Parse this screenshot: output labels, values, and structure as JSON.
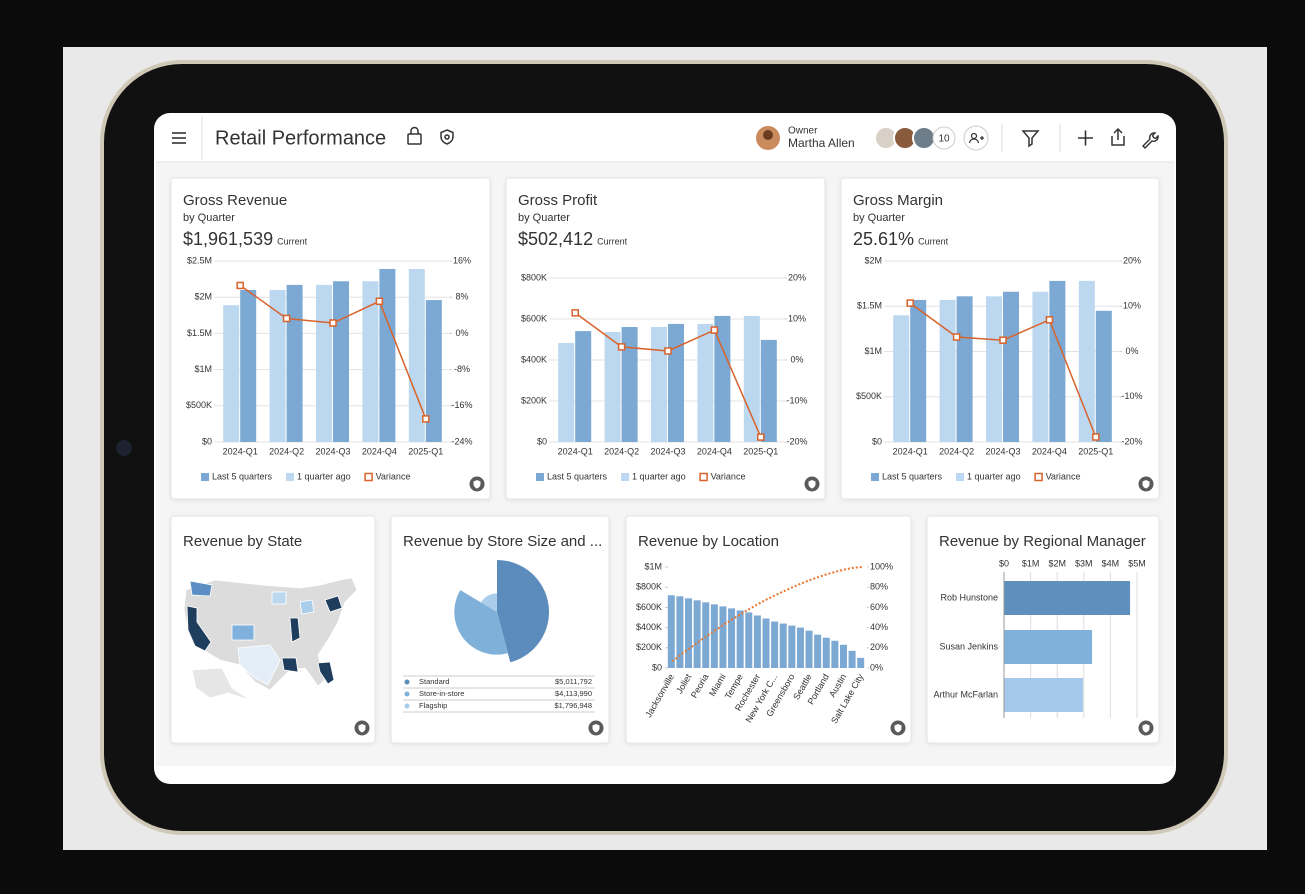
{
  "header": {
    "title": "Retail Performance",
    "owner_label": "Owner",
    "owner_name": "Martha Allen",
    "member_count": 10
  },
  "chart_data": [
    {
      "type": "combo",
      "title": "Gross Revenue",
      "subtitle": "by Quarter",
      "kpi": "$1,961,539",
      "kpi_caption": "Current",
      "categories": [
        "2024-Q1",
        "2024-Q2",
        "2024-Q3",
        "2024-Q4",
        "2025-Q1"
      ],
      "series": [
        {
          "name": "Last 5 quarters",
          "color": "#7ba9d3",
          "values": [
            2100000,
            2170000,
            2220000,
            2390000,
            1960000
          ]
        },
        {
          "name": "1 quarter ago",
          "color": "#bcd8f0",
          "values": [
            1890000,
            2100000,
            2170000,
            2220000,
            2390000
          ]
        },
        {
          "name": "Variance",
          "color": "#d9622b",
          "axis": "y2",
          "values": [
            10.6,
            3.3,
            2.3,
            7.1,
            -18.9
          ]
        }
      ],
      "ylim": [
        0,
        2500000
      ],
      "yticks": [
        {
          "value": 0,
          "label": "$0"
        },
        {
          "value": 500000,
          "label": "$500K"
        },
        {
          "value": 1000000,
          "label": "$1M"
        },
        {
          "value": 1500000,
          "label": "$1.5M"
        },
        {
          "value": 2000000,
          "label": "$2M"
        },
        {
          "value": 2500000,
          "label": "$2.5M"
        }
      ],
      "y2lim": [
        -24,
        16
      ],
      "y2ticks": [
        {
          "value": -24,
          "label": "-24%"
        },
        {
          "value": -16,
          "label": "-16%"
        },
        {
          "value": -8,
          "label": "-8%"
        },
        {
          "value": 0,
          "label": "0%"
        },
        {
          "value": 8,
          "label": "8%"
        },
        {
          "value": 16,
          "label": "16%"
        }
      ],
      "grid": true
    },
    {
      "type": "combo",
      "title": "Gross Profit",
      "subtitle": "by Quarter",
      "kpi": "$502,412",
      "kpi_caption": "Current",
      "categories": [
        "2024-Q1",
        "2024-Q2",
        "2024-Q3",
        "2024-Q4",
        "2025-Q1"
      ],
      "series": [
        {
          "name": "Last 5 quarters",
          "color": "#7ba9d3",
          "values": [
            541000,
            561000,
            576000,
            615000,
            498000
          ]
        },
        {
          "name": "1 quarter ago",
          "color": "#bcd8f0",
          "values": [
            483000,
            537000,
            561000,
            576000,
            615000
          ]
        },
        {
          "name": "Variance",
          "color": "#d9622b",
          "axis": "y2",
          "values": [
            11.5,
            3.2,
            2.2,
            7.3,
            -18.8
          ]
        }
      ],
      "ylim": [
        0,
        800000
      ],
      "yticks": [
        {
          "value": 0,
          "label": "$0"
        },
        {
          "value": 200000,
          "label": "$200K"
        },
        {
          "value": 400000,
          "label": "$400K"
        },
        {
          "value": 600000,
          "label": "$600K"
        },
        {
          "value": 800000,
          "label": "$800K"
        }
      ],
      "y2lim": [
        -20,
        20
      ],
      "y2ticks": [
        {
          "value": -20,
          "label": "-20%"
        },
        {
          "value": -10,
          "label": "-10%"
        },
        {
          "value": 0,
          "label": "0%"
        },
        {
          "value": 10,
          "label": "10%"
        },
        {
          "value": 20,
          "label": "20%"
        }
      ],
      "grid": true
    },
    {
      "type": "combo",
      "title": "Gross Margin",
      "subtitle": "by Quarter",
      "kpi": "25.61%",
      "kpi_caption": "Current",
      "categories": [
        "2024-Q1",
        "2024-Q2",
        "2024-Q3",
        "2024-Q4",
        "2025-Q1"
      ],
      "series": [
        {
          "name": "Last 5 quarters",
          "color": "#7ba9d3",
          "values": [
            1570000,
            1610000,
            1660000,
            1780000,
            1450000
          ]
        },
        {
          "name": "1 quarter ago",
          "color": "#bcd8f0",
          "values": [
            1400000,
            1570000,
            1610000,
            1660000,
            1780000
          ]
        },
        {
          "name": "Variance",
          "color": "#d9622b",
          "axis": "y2",
          "values": [
            10.7,
            3.2,
            2.5,
            7.0,
            -18.9
          ]
        }
      ],
      "ylim": [
        0,
        2000000
      ],
      "yticks": [
        {
          "value": 0,
          "label": "$0"
        },
        {
          "value": 500000,
          "label": "$500K"
        },
        {
          "value": 1000000,
          "label": "$1M"
        },
        {
          "value": 1500000,
          "label": "$1.5M"
        },
        {
          "value": 2000000,
          "label": "$2M"
        }
      ],
      "y2lim": [
        -20,
        20
      ],
      "y2ticks": [
        {
          "value": -20,
          "label": "-20%"
        },
        {
          "value": -10,
          "label": "-10%"
        },
        {
          "value": 0,
          "label": "0%"
        },
        {
          "value": 10,
          "label": "10%"
        },
        {
          "value": 20,
          "label": "20%"
        }
      ],
      "grid": true
    },
    {
      "type": "map",
      "title": "Revenue by State"
    },
    {
      "type": "pie",
      "title": "Revenue by Store Size and ...",
      "categories": [
        "Standard",
        "Store-in-store",
        "Flagship"
      ],
      "values": [
        5011792,
        4113990,
        1796948
      ],
      "value_labels": [
        "$5,011,792",
        "$4,113,990",
        "$1,796,948"
      ],
      "colors": [
        "#5b8cbb",
        "#7fb0da",
        "#a9cdea"
      ]
    },
    {
      "type": "combo",
      "title": "Revenue by Location",
      "categories": [
        "Jacksonville",
        null,
        "Joliet",
        null,
        "Peoria",
        null,
        "Miami",
        null,
        "Tempe",
        null,
        "Rochester",
        null,
        "New York C...",
        null,
        "Greensboro",
        null,
        "Seattle",
        null,
        "Portland",
        null,
        "Austin",
        null,
        "Salt Lake City"
      ],
      "series": [
        {
          "color": "#7ba9d3",
          "values": [
            720000,
            710000,
            690000,
            670000,
            650000,
            630000,
            610000,
            590000,
            570000,
            550000,
            520000,
            490000,
            460000,
            440000,
            420000,
            400000,
            370000,
            330000,
            300000,
            270000,
            230000,
            170000,
            100000
          ]
        },
        {
          "color": "#e8772e",
          "axis": "y2",
          "dotted": true,
          "values": [
            6.6,
            13.1,
            19.5,
            25.6,
            31.6,
            37.4,
            43.0,
            48.4,
            53.6,
            58.7,
            63.5,
            68.0,
            72.2,
            76.2,
            80.1,
            83.7,
            87.1,
            90.2,
            92.9,
            95.4,
            97.5,
            99.1,
            100
          ]
        }
      ],
      "ylim": [
        0,
        1000000
      ],
      "yticks": [
        {
          "value": 0,
          "label": "$0"
        },
        {
          "value": 200000,
          "label": "$200K"
        },
        {
          "value": 400000,
          "label": "$400K"
        },
        {
          "value": 600000,
          "label": "$600K"
        },
        {
          "value": 800000,
          "label": "$800K"
        },
        {
          "value": 1000000,
          "label": "$1M"
        }
      ],
      "y2lim": [
        0,
        100
      ],
      "y2ticks": [
        {
          "value": 0,
          "label": "0%"
        },
        {
          "value": 20,
          "label": "20%"
        },
        {
          "value": 40,
          "label": "40%"
        },
        {
          "value": 60,
          "label": "60%"
        },
        {
          "value": 80,
          "label": "80%"
        },
        {
          "value": 100,
          "label": "100%"
        }
      ],
      "grid": false
    },
    {
      "type": "hbar",
      "title": "Revenue by Regional Manager",
      "categories": [
        "Rob Hunstone",
        "Susan Jenkins",
        "Arthur McFarlan"
      ],
      "values": [
        4740000,
        3310000,
        2970000
      ],
      "colors": [
        "#5f8fbd",
        "#7fb1dc",
        "#a5c9ea"
      ],
      "xlim": [
        0,
        5000000
      ],
      "xticks": [
        {
          "value": 0,
          "label": "$0"
        },
        {
          "value": 1000000,
          "label": "$1M"
        },
        {
          "value": 2000000,
          "label": "$2M"
        },
        {
          "value": 3000000,
          "label": "$3M"
        },
        {
          "value": 4000000,
          "label": "$4M"
        },
        {
          "value": 5000000,
          "label": "$5M"
        }
      ],
      "grid": true
    }
  ]
}
